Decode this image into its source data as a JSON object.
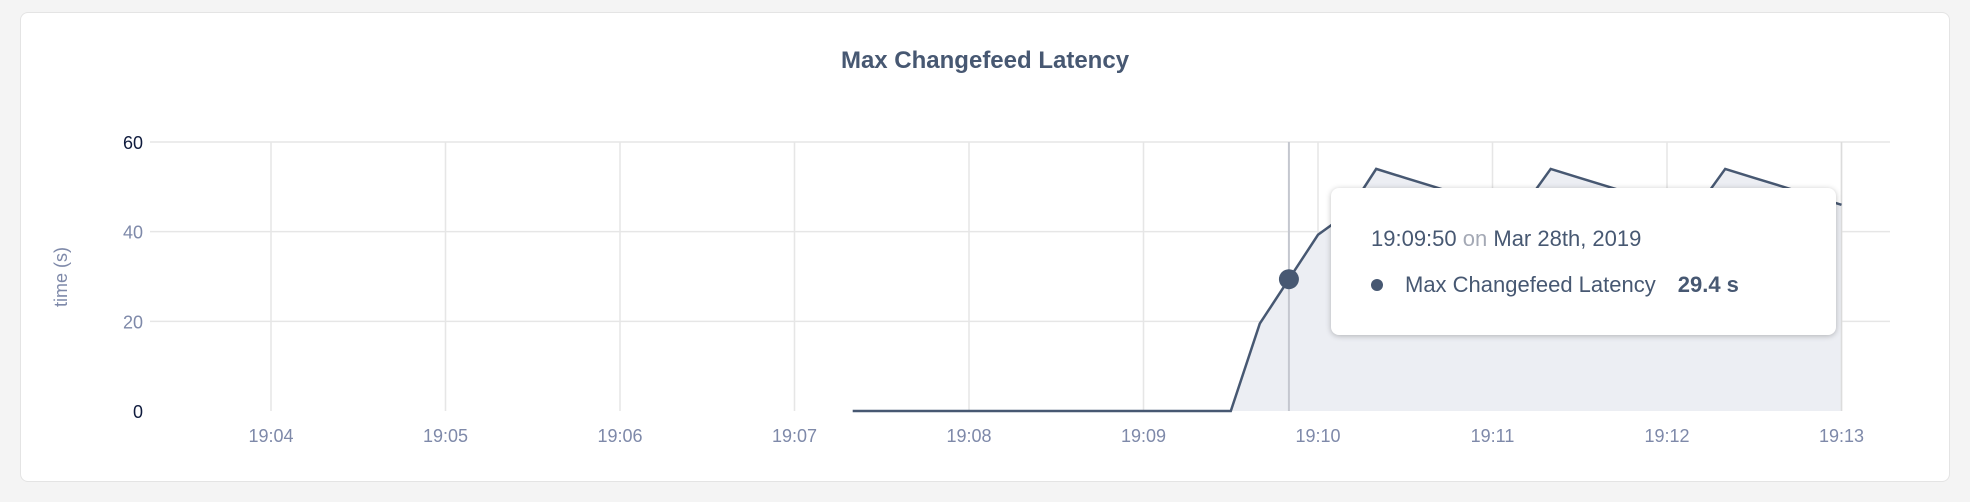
{
  "chart_data": {
    "type": "area",
    "title": "Max Changefeed Latency",
    "ylabel": "time (s)",
    "xlabel": "",
    "ylim": [
      0,
      60
    ],
    "yticks": [
      "0",
      "20",
      "40",
      "60"
    ],
    "xticks": [
      "19:04",
      "19:05",
      "19:06",
      "19:07",
      "19:08",
      "19:09",
      "19:10",
      "19:11",
      "19:12",
      "19:13"
    ],
    "grid": true,
    "series": [
      {
        "name": "Max Changefeed Latency",
        "color": "#475872",
        "fill": "#eceef3",
        "x": [
          "19:07:20",
          "19:07:30",
          "19:07:40",
          "19:07:50",
          "19:08:00",
          "19:08:10",
          "19:08:20",
          "19:08:30",
          "19:08:40",
          "19:08:50",
          "19:09:00",
          "19:09:10",
          "19:09:20",
          "19:09:30",
          "19:09:40",
          "19:09:50",
          "19:10:00",
          "19:10:10",
          "19:10:20",
          "19:10:30",
          "19:10:40",
          "19:10:50",
          "19:11:00",
          "19:11:10",
          "19:11:20",
          "19:11:30",
          "19:11:40",
          "19:11:50",
          "19:12:00",
          "19:12:10",
          "19:12:20",
          "19:12:30",
          "19:12:40",
          "19:12:50",
          "19:13:00"
        ],
        "values": [
          0,
          0,
          0,
          0,
          0,
          0,
          0,
          0,
          0,
          0,
          0,
          0,
          0,
          0,
          19.5,
          29.4,
          39.3,
          44,
          54,
          52,
          50,
          48,
          46.5,
          45,
          54,
          52,
          50,
          48,
          46.5,
          45,
          54,
          52,
          50,
          48,
          46
        ]
      }
    ],
    "hover": {
      "x": "19:09:50",
      "value": 29.4
    }
  },
  "tooltip": {
    "time": "19:09:50",
    "on": "on",
    "date": "Mar 28th, 2019",
    "series_name": "Max Changefeed Latency",
    "value": "29.4 s"
  }
}
